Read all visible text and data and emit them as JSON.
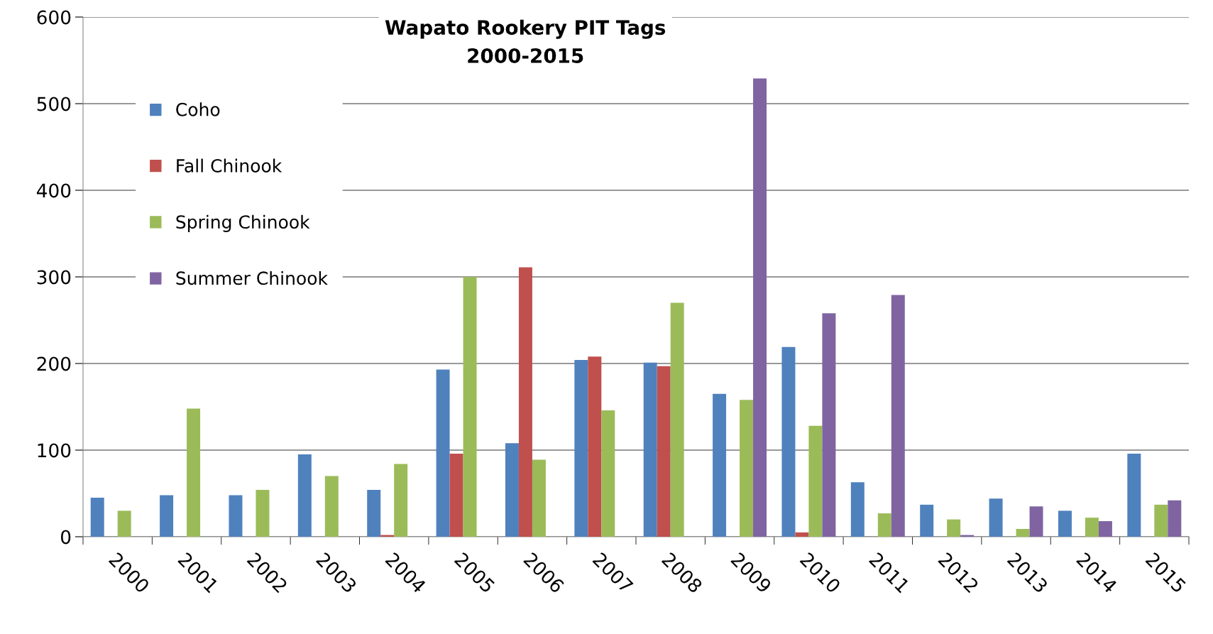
{
  "chart_data": {
    "type": "bar",
    "title": "Wapato Rookery PIT Tags\n2000-2015",
    "categories": [
      "2000",
      "2001",
      "2002",
      "2003",
      "2004",
      "2005",
      "2006",
      "2007",
      "2008",
      "2009",
      "2010",
      "2011",
      "2012",
      "2013",
      "2014",
      "2015"
    ],
    "series": [
      {
        "name": "Coho",
        "color": "#4f81bd",
        "values": [
          45,
          48,
          48,
          95,
          54,
          193,
          108,
          204,
          201,
          165,
          219,
          63,
          37,
          44,
          30,
          96
        ]
      },
      {
        "name": "Fall Chinook",
        "color": "#c0504d",
        "values": [
          null,
          null,
          null,
          null,
          2,
          96,
          311,
          208,
          197,
          null,
          5,
          null,
          null,
          null,
          null,
          null
        ]
      },
      {
        "name": "Spring Chinook",
        "color": "#9bbb59",
        "values": [
          30,
          148,
          54,
          70,
          84,
          300,
          89,
          146,
          270,
          158,
          128,
          27,
          20,
          9,
          22,
          37
        ]
      },
      {
        "name": "Summer Chinook",
        "color": "#8064a2",
        "values": [
          null,
          null,
          null,
          null,
          null,
          null,
          null,
          null,
          null,
          529,
          258,
          279,
          2,
          35,
          18,
          42
        ]
      }
    ],
    "ylim": [
      0,
      600
    ],
    "yticks": [
      0,
      100,
      200,
      300,
      400,
      500,
      600
    ],
    "grid": "y",
    "legend": "top left"
  }
}
